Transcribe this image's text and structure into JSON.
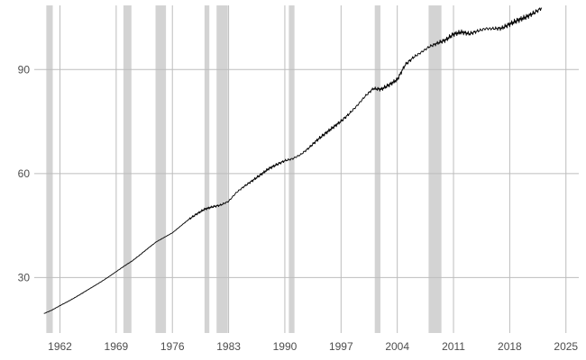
{
  "chart_data": {
    "type": "line",
    "title": "",
    "xlabel": "",
    "ylabel": "",
    "xlim": [
      1958.8,
      2026.6
    ],
    "ylim": [
      14,
      108.5
    ],
    "x_ticks": [
      1962,
      1969,
      1976,
      1983,
      1990,
      1997,
      2004,
      2011,
      2018,
      2025
    ],
    "x_tick_labels": [
      "1962",
      "1969",
      "1976",
      "1983",
      "1990",
      "1997",
      "2004",
      "2011",
      "2018",
      "2025"
    ],
    "y_ticks": [
      30,
      60,
      90
    ],
    "y_tick_labels": [
      "30",
      "60",
      "90"
    ],
    "grid": true,
    "colors": {
      "line": "#000000",
      "recession_band": "#d3d3d3",
      "grid": "#bdbdbd"
    },
    "recession_periods": [
      {
        "start": 1960.3,
        "end": 1961.1
      },
      {
        "start": 1969.9,
        "end": 1970.9
      },
      {
        "start": 1973.9,
        "end": 1975.2
      },
      {
        "start": 1980.0,
        "end": 1980.6
      },
      {
        "start": 1981.5,
        "end": 1982.9
      },
      {
        "start": 1990.5,
        "end": 1991.2
      },
      {
        "start": 2001.2,
        "end": 2001.9
      },
      {
        "start": 2007.9,
        "end": 2009.5
      }
    ],
    "series": [
      {
        "values": [
          [
            1960.0,
            19.6
          ],
          [
            1961.0,
            20.6
          ],
          [
            1962.0,
            21.9
          ],
          [
            1963.0,
            23.1
          ],
          [
            1964.0,
            24.4
          ],
          [
            1965.0,
            25.8
          ],
          [
            1966.0,
            27.2
          ],
          [
            1967.0,
            28.6
          ],
          [
            1968.0,
            30.1
          ],
          [
            1969.0,
            31.7
          ],
          [
            1970.0,
            33.3
          ],
          [
            1971.0,
            34.8
          ],
          [
            1972.0,
            36.6
          ],
          [
            1973.0,
            38.5
          ],
          [
            1974.0,
            40.3
          ],
          [
            1975.0,
            41.6
          ],
          [
            1976.0,
            42.9
          ],
          [
            1977.0,
            44.8
          ],
          [
            1978.0,
            46.7
          ],
          [
            1979.0,
            48.3
          ],
          [
            1980.0,
            49.7
          ],
          [
            1981.0,
            50.4
          ],
          [
            1982.0,
            50.9
          ],
          [
            1983.0,
            52.0
          ],
          [
            1984.0,
            54.6
          ],
          [
            1985.0,
            56.4
          ],
          [
            1986.0,
            58.0
          ],
          [
            1987.0,
            59.7
          ],
          [
            1988.0,
            61.4
          ],
          [
            1989.0,
            62.6
          ],
          [
            1990.0,
            63.7
          ],
          [
            1991.0,
            64.3
          ],
          [
            1992.0,
            65.5
          ],
          [
            1993.0,
            67.4
          ],
          [
            1994.0,
            69.6
          ],
          [
            1995.0,
            71.5
          ],
          [
            1996.0,
            73.3
          ],
          [
            1997.0,
            75.1
          ],
          [
            1998.0,
            77.2
          ],
          [
            1999.0,
            79.6
          ],
          [
            2000.0,
            82.3
          ],
          [
            2001.0,
            84.5
          ],
          [
            2002.0,
            84.3
          ],
          [
            2003.0,
            85.6
          ],
          [
            2004.0,
            87.1
          ],
          [
            2005.0,
            91.4
          ],
          [
            2006.0,
            93.5
          ],
          [
            2007.0,
            95.0
          ],
          [
            2008.0,
            96.6
          ],
          [
            2009.0,
            97.6
          ],
          [
            2010.0,
            98.5
          ],
          [
            2011.0,
            100.2
          ],
          [
            2012.0,
            100.8
          ],
          [
            2013.0,
            100.3
          ],
          [
            2014.0,
            101.1
          ],
          [
            2015.0,
            101.8
          ],
          [
            2016.0,
            101.8
          ],
          [
            2017.0,
            101.9
          ],
          [
            2018.0,
            103.1
          ],
          [
            2019.0,
            104.2
          ],
          [
            2020.0,
            105.1
          ],
          [
            2021.0,
            106.3
          ],
          [
            2022.0,
            107.8
          ]
        ]
      }
    ]
  }
}
